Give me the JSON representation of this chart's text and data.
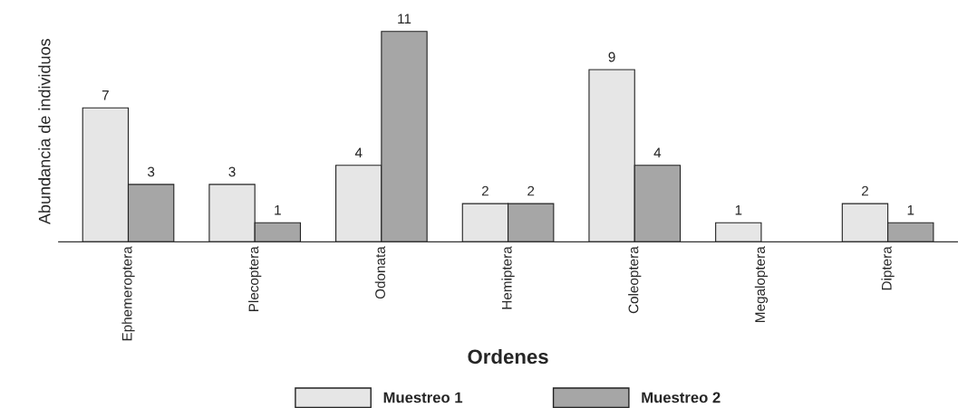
{
  "chart_data": {
    "type": "bar",
    "xlabel": "Ordenes",
    "ylabel": "Abundancia de individuos",
    "categories": [
      "Ephemeroptera",
      "Plecoptera",
      "Odonata",
      "Hemiptera",
      "Coleoptera",
      "Megaloptera",
      "Diptera"
    ],
    "series": [
      {
        "name": "Muestreo 1",
        "color": "#e6e6e6",
        "values": [
          7,
          3,
          4,
          2,
          9,
          1,
          2
        ],
        "value_labels": [
          "7",
          "3",
          "4",
          "2",
          "9",
          "1",
          "2"
        ]
      },
      {
        "name": "Muestreo 2",
        "color": "#a6a6a6",
        "values": [
          3,
          1,
          11,
          2,
          4,
          0,
          1
        ],
        "value_labels": [
          "3",
          "1",
          "11",
          "2",
          "4",
          null,
          "1"
        ]
      }
    ],
    "legend": "bottom",
    "grid": false,
    "tick_labels": "x"
  }
}
